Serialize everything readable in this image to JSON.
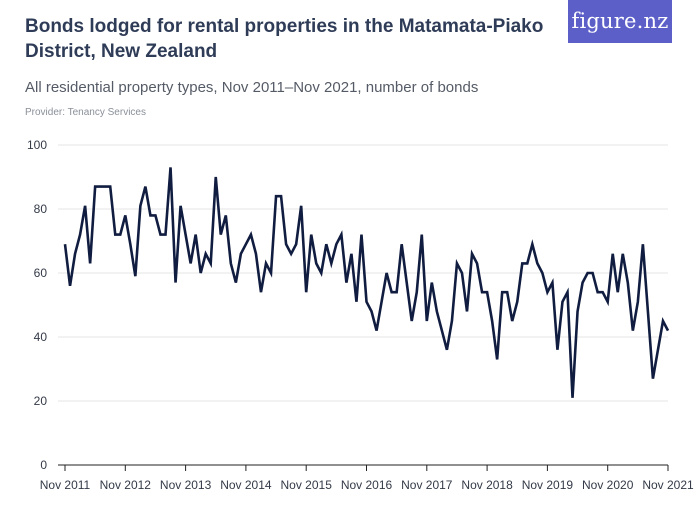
{
  "header": {
    "title": "Bonds lodged for rental properties in the Matamata-Piako District, New Zealand",
    "subtitle": "All residential property types, Nov 2011–Nov 2021, number of bonds",
    "provider": "Provider: Tenancy Services",
    "brand": "figure.nz"
  },
  "colors": {
    "line": "#111d40",
    "grid": "#e4e4e4",
    "axis": "#222222",
    "brand_bg": "#5b5fc7"
  },
  "chart_data": {
    "type": "line",
    "title": "Bonds lodged for rental properties in the Matamata-Piako District, New Zealand",
    "xlabel": "",
    "ylabel": "",
    "ylim": [
      0,
      100
    ],
    "yticks": [
      0,
      20,
      40,
      60,
      80,
      100
    ],
    "ytick_labels": [
      "0",
      "20",
      "40",
      "60",
      "80",
      "100"
    ],
    "xtick_labels": [
      "Nov 2011",
      "Nov 2012",
      "Nov 2013",
      "Nov 2014",
      "Nov 2015",
      "Nov 2016",
      "Nov 2017",
      "Nov 2018",
      "Nov 2019",
      "Nov 2020",
      "Nov 2021"
    ],
    "grid": true,
    "series": [
      {
        "name": "Bonds lodged",
        "start": "Nov 2011",
        "frequency": "monthly",
        "values": [
          69,
          56,
          66,
          72,
          81,
          63,
          87,
          87,
          87,
          87,
          72,
          72,
          78,
          69,
          59,
          81,
          87,
          78,
          78,
          72,
          72,
          93,
          57,
          81,
          72,
          63,
          72,
          60,
          66,
          63,
          90,
          72,
          78,
          63,
          57,
          66,
          69,
          72,
          66,
          54,
          63,
          60,
          84,
          84,
          69,
          66,
          69,
          81,
          54,
          72,
          63,
          60,
          69,
          63,
          69,
          72,
          57,
          66,
          51,
          72,
          51,
          48,
          42,
          51,
          60,
          54,
          54,
          69,
          57,
          45,
          54,
          72,
          45,
          57,
          48,
          42,
          36,
          45,
          63,
          60,
          48,
          66,
          63,
          54,
          54,
          45,
          33,
          54,
          54,
          45,
          51,
          63,
          63,
          69,
          63,
          60,
          54,
          57,
          36,
          51,
          54,
          21,
          48,
          57,
          60,
          60,
          54,
          54,
          51,
          66,
          54,
          66,
          57,
          42,
          51,
          69,
          48,
          27,
          36,
          45,
          42
        ]
      }
    ]
  }
}
